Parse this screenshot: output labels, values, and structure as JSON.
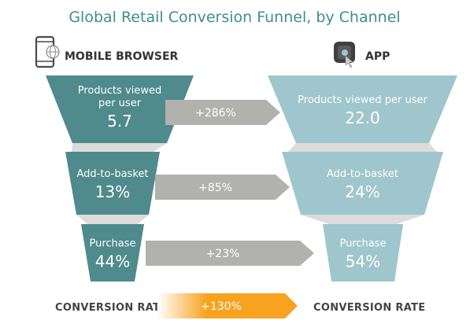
{
  "title": "Global Retail Conversion Funnel, by Channel",
  "colors": {
    "mobile": "#4f8a8c",
    "app": "#9fc6cc",
    "arrow": "#b1b1ad",
    "connector": "#dcdcdc",
    "conversion_arrow": "#f7a320",
    "title": "#3f8e8f"
  },
  "chart_data": {
    "type": "funnel",
    "title": "Global Retail Conversion Funnel, by Channel",
    "channels": [
      {
        "name": "MOBILE BROWSER",
        "icon": "mobile-web-icon"
      },
      {
        "name": "APP",
        "icon": "app-touch-icon"
      }
    ],
    "stages": [
      {
        "label": "Products viewed per user",
        "mobile_label_lines": [
          "Products viewed",
          "per user"
        ],
        "mobile": "5.7",
        "app": "22.0",
        "delta": "+286%"
      },
      {
        "label": "Add-to-basket",
        "mobile_label_lines": [
          "Add-to-basket"
        ],
        "mobile": "13%",
        "app": "24%",
        "delta": "+85%"
      },
      {
        "label": "Purchase",
        "mobile_label_lines": [
          "Purchase"
        ],
        "mobile": "44%",
        "app": "54%",
        "delta": "+23%"
      }
    ],
    "conversion": {
      "left_label": "CONVERSION RATE",
      "right_label": "CONVERSION RATE",
      "delta": "+130%"
    }
  }
}
